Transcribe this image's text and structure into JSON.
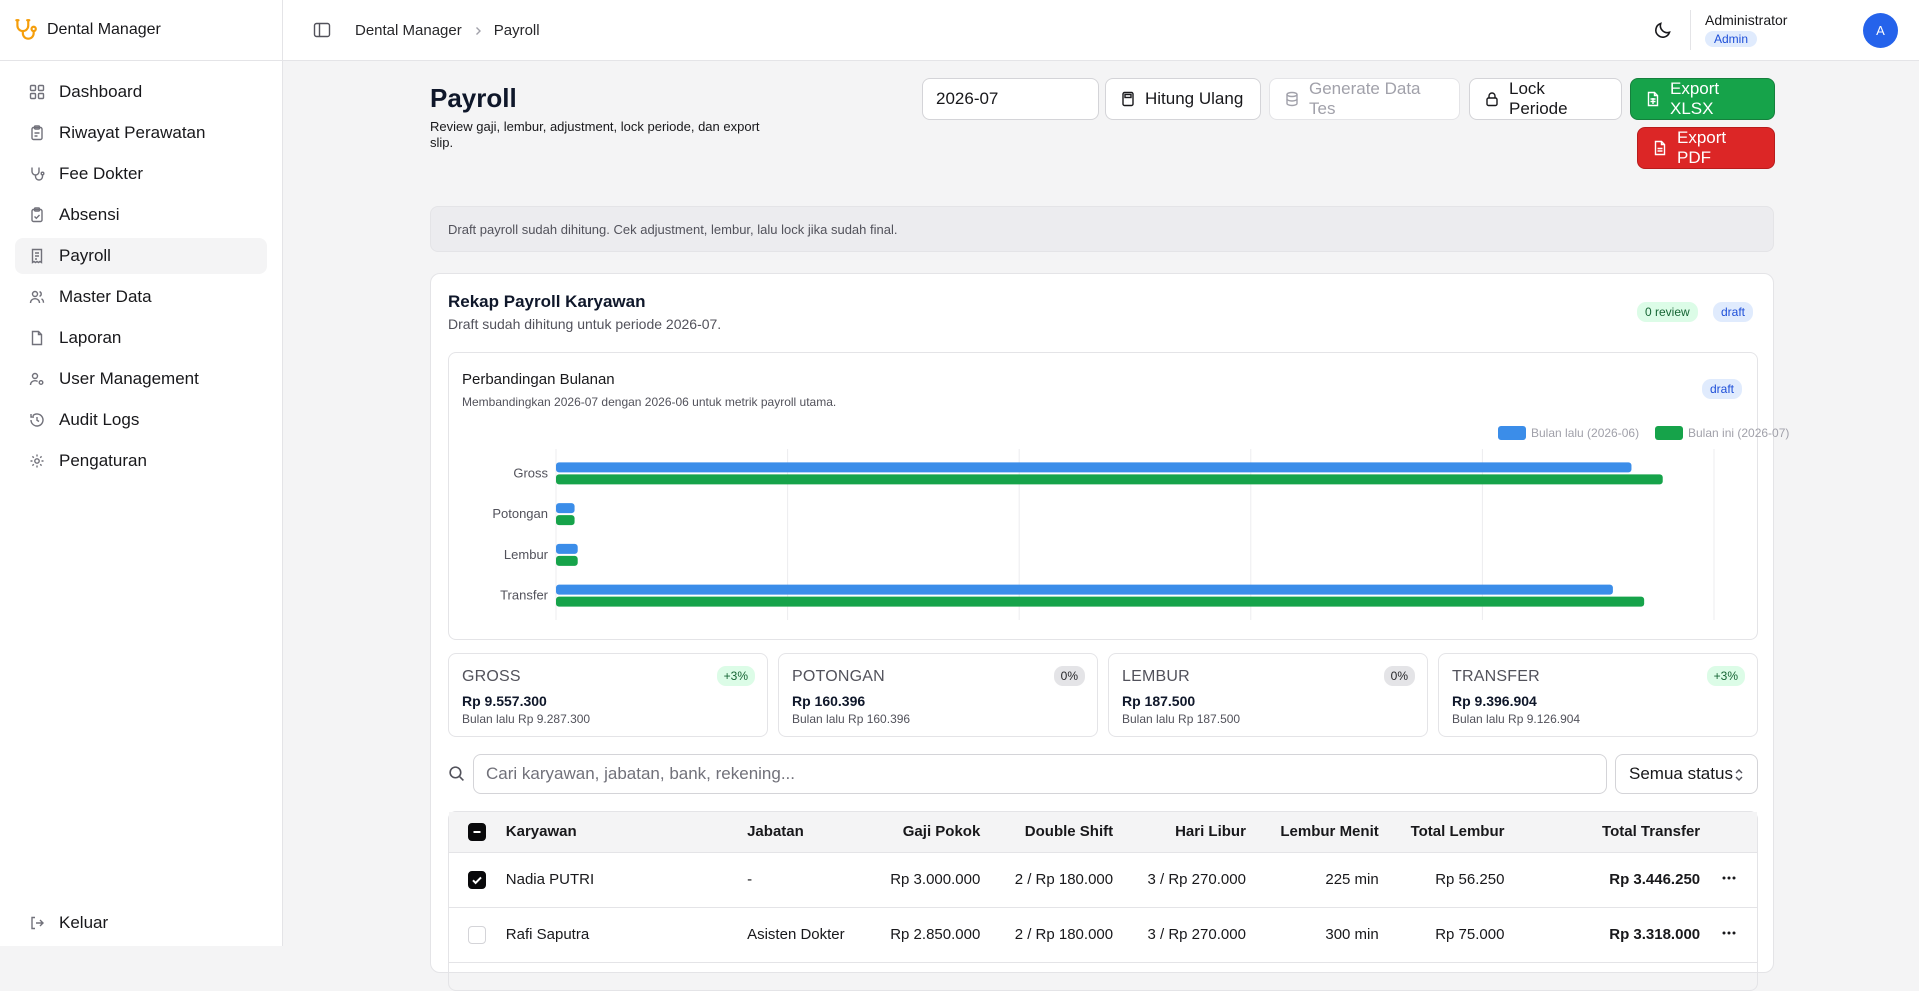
{
  "app": {
    "name": "Dental Manager"
  },
  "sidebar": {
    "items": [
      {
        "label": "Dashboard",
        "icon": "dashboard-icon"
      },
      {
        "label": "Riwayat Perawatan",
        "icon": "clipboard-icon"
      },
      {
        "label": "Fee Dokter",
        "icon": "stethoscope-icon"
      },
      {
        "label": "Absensi",
        "icon": "clipboard-check-icon"
      },
      {
        "label": "Payroll",
        "icon": "receipt-icon",
        "active": true
      },
      {
        "label": "Master Data",
        "icon": "users-icon"
      },
      {
        "label": "Laporan",
        "icon": "file-icon"
      },
      {
        "label": "User Management",
        "icon": "user-cog-icon"
      },
      {
        "label": "Audit Logs",
        "icon": "history-icon"
      },
      {
        "label": "Pengaturan",
        "icon": "gear-icon"
      }
    ],
    "logout": "Keluar"
  },
  "topbar": {
    "breadcrumb": [
      "Dental Manager",
      "Payroll"
    ],
    "user_name": "Administrator",
    "user_role": "Admin",
    "avatar_initial": "A"
  },
  "page": {
    "title": "Payroll",
    "subtitle": "Review gaji, lembur, adjustment, lock periode, dan export slip.",
    "period_value": "2026-07",
    "buttons": {
      "recalc": "Hitung Ulang",
      "generate": "Generate Data Tes",
      "lock": "Lock Periode",
      "export_xlsx": "Export XLSX",
      "export_pdf": "Export PDF"
    },
    "notice": "Draft payroll sudah dihitung. Cek adjustment, lembur, lalu lock jika sudah final."
  },
  "recap": {
    "title": "Rekap Payroll Karyawan",
    "subtitle": "Draft sudah dihitung untuk periode 2026-07.",
    "review_badge": "0 review",
    "status_badge": "draft"
  },
  "comparison": {
    "title": "Perbandingan Bulanan",
    "subtitle": "Membandingkan 2026-07 dengan 2026-06 untuk metrik payroll utama.",
    "badge": "draft"
  },
  "chart_data": {
    "type": "bar",
    "orientation": "horizontal",
    "categories": [
      "Gross",
      "Potongan",
      "Lembur",
      "Transfer"
    ],
    "series": [
      {
        "name": "Bulan lalu (2026-06)",
        "color": "#3b8de9",
        "values": [
          9287300,
          160396,
          187500,
          9126904
        ]
      },
      {
        "name": "Bulan ini (2026-07)",
        "color": "#16a34a",
        "values": [
          9557300,
          160396,
          187500,
          9396904
        ]
      }
    ],
    "xlim": [
      0,
      10000000
    ],
    "grid": true,
    "legend": "top-right"
  },
  "stats": [
    {
      "label": "GROSS",
      "value": "Rp 9.557.300",
      "prev": "Bulan lalu Rp 9.287.300",
      "badge": "+3%",
      "trend": "up"
    },
    {
      "label": "POTONGAN",
      "value": "Rp 160.396",
      "prev": "Bulan lalu Rp 160.396",
      "badge": "0%",
      "trend": "flat"
    },
    {
      "label": "LEMBUR",
      "value": "Rp 187.500",
      "prev": "Bulan lalu Rp 187.500",
      "badge": "0%",
      "trend": "flat"
    },
    {
      "label": "TRANSFER",
      "value": "Rp 9.396.904",
      "prev": "Bulan lalu Rp 9.126.904",
      "badge": "+3%",
      "trend": "up"
    }
  ],
  "filters": {
    "search_placeholder": "Cari karyawan, jabatan, bank, rekening...",
    "search_value": "",
    "status_value": "Semua status"
  },
  "table": {
    "columns": [
      "Karyawan",
      "Jabatan",
      "Gaji Pokok",
      "Double Shift",
      "Hari Libur",
      "Lembur Menit",
      "Total Lembur",
      "Total Transfer"
    ],
    "rows": [
      {
        "checked": true,
        "cells": [
          "Nadia PUTRI",
          "-",
          "Rp 3.000.000",
          "2 / Rp 180.000",
          "3 / Rp 270.000",
          "225 min",
          "Rp 56.250",
          "Rp 3.446.250"
        ]
      },
      {
        "checked": false,
        "cells": [
          "Rafi Saputra",
          "Asisten Dokter",
          "Rp 2.850.000",
          "2 / Rp 180.000",
          "3 / Rp 270.000",
          "300 min",
          "Rp 75.000",
          "Rp 3.318.000"
        ]
      }
    ]
  }
}
